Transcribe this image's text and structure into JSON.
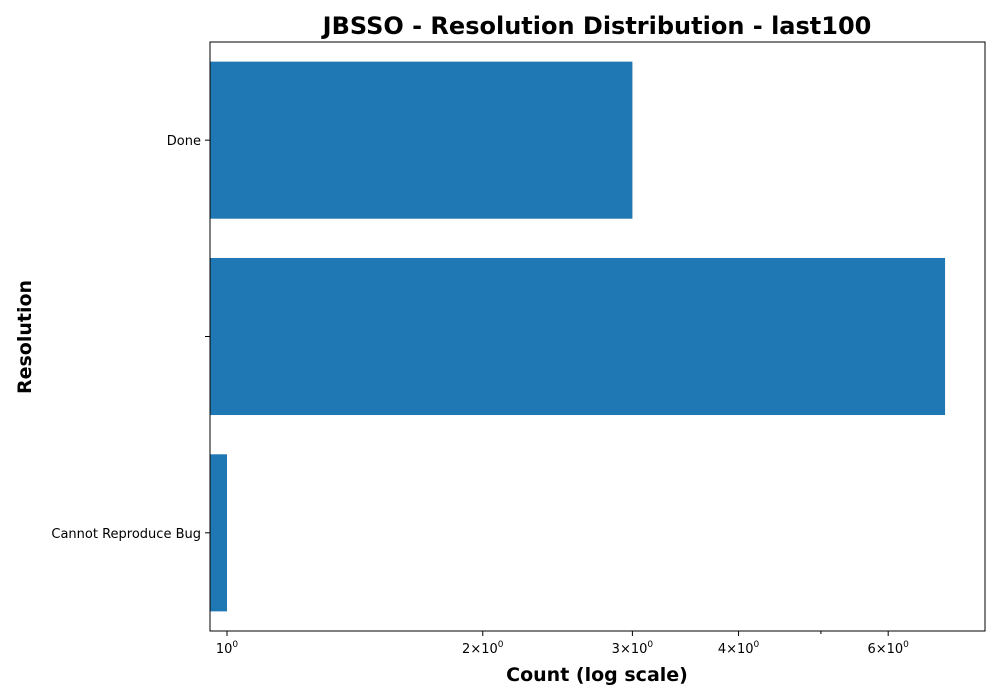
{
  "chart_data": {
    "type": "bar",
    "orientation": "horizontal",
    "title": "JBSSO - Resolution Distribution - last100",
    "xlabel": "Count (log scale)",
    "ylabel": "Resolution",
    "x_scale": "log",
    "xlim": [
      0.955,
      7.8
    ],
    "categories": [
      "Done",
      "",
      "Cannot Reproduce Bug"
    ],
    "values": [
      3,
      7,
      1
    ],
    "x_ticks": [
      {
        "value": 1,
        "base": "10",
        "exp": "0"
      },
      {
        "value": 2,
        "base": "2×10",
        "exp": "0"
      },
      {
        "value": 3,
        "base": "3×10",
        "exp": "0"
      },
      {
        "value": 4,
        "base": "4×10",
        "exp": "0"
      },
      {
        "value": 6,
        "base": "6×10",
        "exp": "0"
      }
    ],
    "x_minor_ticks": [
      5
    ],
    "grid": false,
    "bar_color": "#1f77b4"
  }
}
